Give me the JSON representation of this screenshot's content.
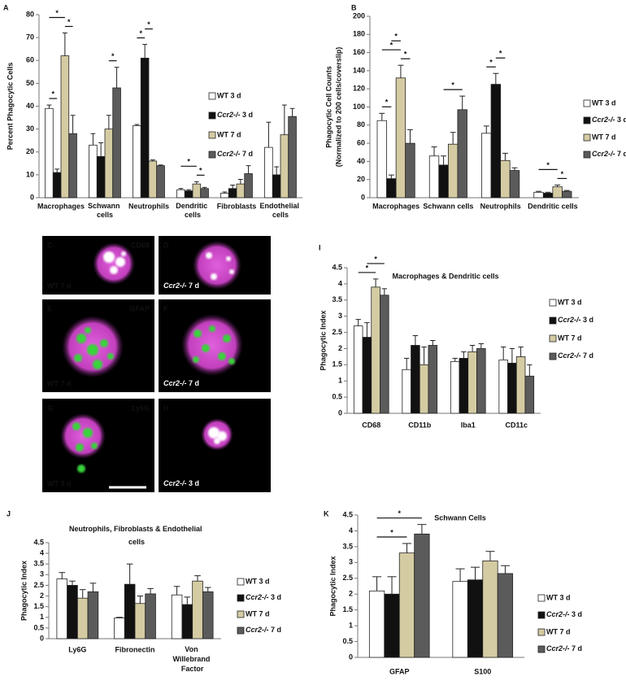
{
  "chart_data": [
    {
      "type": "bar",
      "panel": "A",
      "ylabel": [
        "Percent Phagocytic Cells"
      ],
      "categories": [
        "Macrophages",
        "Schwann cells",
        "Neutrophils",
        "Dendritic cells",
        "Fibroblasts",
        "Endothelial cells"
      ],
      "ylim": [
        0,
        80
      ],
      "yticks": [
        0,
        10,
        20,
        30,
        40,
        50,
        60,
        70,
        80
      ],
      "series": [
        {
          "name": "WT 3 d",
          "color": "#ffffff",
          "values": [
            39,
            23,
            31.5,
            3.5,
            2,
            22
          ],
          "errors": [
            1.5,
            5,
            0.5,
            0.5,
            0.5,
            11
          ]
        },
        {
          "name": "Ccr2-/- 3 d",
          "color": "#111111",
          "values": [
            11,
            18,
            61,
            3,
            4,
            10
          ],
          "errors": [
            1.5,
            6,
            6,
            0.5,
            1.5,
            3.5
          ]
        },
        {
          "name": "WT 7 d",
          "color": "#d5cba3",
          "values": [
            62,
            30,
            16,
            6,
            6,
            27.5
          ],
          "errors": [
            10,
            6,
            0.5,
            1,
            2,
            13
          ]
        },
        {
          "name": "Ccr2-/- 7 d",
          "color": "#5b5b5b",
          "values": [
            28,
            48,
            14,
            4,
            10.5,
            35.5
          ],
          "errors": [
            8,
            9,
            0.3,
            0.5,
            3.5,
            3.5
          ]
        }
      ],
      "significance": [
        {
          "category": 0,
          "series": [
            0,
            1
          ],
          "label": "*"
        },
        {
          "category": 0,
          "series": [
            2,
            3
          ],
          "label": "*"
        },
        {
          "category": 0,
          "series": [
            0,
            2
          ],
          "label": "*"
        },
        {
          "category": 1,
          "series": [
            2,
            3
          ],
          "label": "*"
        },
        {
          "category": 2,
          "series": [
            0,
            1
          ],
          "label": "*"
        },
        {
          "category": 2,
          "series": [
            1,
            2
          ],
          "label": "*"
        },
        {
          "category": 3,
          "series": [
            2,
            3
          ],
          "label": "*"
        },
        {
          "category": 3,
          "series": [
            0,
            2
          ],
          "label": "*"
        }
      ]
    },
    {
      "type": "bar",
      "panel": "B",
      "ylabel": [
        "Phagocytic Cell Counts",
        "(Normalized to 200 cells/coverslip)"
      ],
      "categories": [
        "Macrophages",
        "Schwann cells",
        "Neutrophils",
        "Dendritic cells"
      ],
      "ylim": [
        0,
        200
      ],
      "yticks": [
        0,
        20,
        40,
        60,
        80,
        100,
        120,
        140,
        160,
        180,
        200
      ],
      "series": [
        {
          "name": "WT 3 d",
          "color": "#ffffff",
          "values": [
            85,
            46,
            71,
            6
          ],
          "errors": [
            8,
            10,
            8,
            1
          ]
        },
        {
          "name": "Ccr2-/- 3 d",
          "color": "#111111",
          "values": [
            21,
            36,
            125,
            5
          ],
          "errors": [
            4,
            10,
            12,
            1
          ]
        },
        {
          "name": "WT 7 d",
          "color": "#d5cba3",
          "values": [
            132,
            59,
            41,
            12
          ],
          "errors": [
            14,
            13,
            8,
            2
          ]
        },
        {
          "name": "Ccr2-/- 7 d",
          "color": "#5b5b5b",
          "values": [
            60,
            97,
            30,
            7
          ],
          "errors": [
            15,
            15,
            3,
            1
          ]
        }
      ],
      "significance": [
        {
          "category": 0,
          "series": [
            0,
            1
          ],
          "label": "*"
        },
        {
          "category": 0,
          "series": [
            2,
            3
          ],
          "label": "*"
        },
        {
          "category": 0,
          "series": [
            0,
            2
          ],
          "label": "*"
        },
        {
          "category": 0,
          "series": [
            1,
            2
          ],
          "label": "*"
        },
        {
          "category": 1,
          "series": [
            1,
            3
          ],
          "label": "*"
        },
        {
          "category": 2,
          "series": [
            0,
            1
          ],
          "label": "*"
        },
        {
          "category": 2,
          "series": [
            1,
            2
          ],
          "label": "*"
        },
        {
          "category": 3,
          "series": [
            2,
            3
          ],
          "label": "*"
        },
        {
          "category": 3,
          "series": [
            0,
            2
          ],
          "label": "*"
        }
      ]
    },
    {
      "type": "bar",
      "panel": "I",
      "title": "Macrophages & Dendritic cells",
      "ylabel": [
        "Phagocytic Index"
      ],
      "categories": [
        "CD68",
        "CD11b",
        "Iba1",
        "CD11c"
      ],
      "ylim": [
        0,
        4.5
      ],
      "yticks": [
        0,
        0.5,
        1,
        1.5,
        2,
        2.5,
        3,
        3.5,
        4,
        4.5
      ],
      "series": [
        {
          "name": "WT 3 d",
          "color": "#ffffff",
          "values": [
            2.7,
            1.35,
            1.6,
            1.65
          ],
          "errors": [
            0.2,
            0.35,
            0.1,
            0.4
          ]
        },
        {
          "name": "Ccr2-/- 3 d",
          "color": "#111111",
          "values": [
            2.35,
            2.1,
            1.7,
            1.55
          ],
          "errors": [
            0.45,
            0.3,
            0.2,
            0.45
          ]
        },
        {
          "name": "WT 7 d",
          "color": "#d5cba3",
          "values": [
            3.9,
            1.5,
            1.9,
            1.75
          ],
          "errors": [
            0.25,
            0.55,
            0.2,
            0.3
          ]
        },
        {
          "name": "Ccr2-/- 7 d",
          "color": "#5b5b5b",
          "values": [
            3.65,
            2.1,
            2.0,
            1.15
          ],
          "errors": [
            0.2,
            0.15,
            0.15,
            0.35
          ]
        }
      ],
      "significance": [
        {
          "category": 0,
          "series": [
            0,
            2
          ],
          "label": "*"
        },
        {
          "category": 0,
          "series": [
            1,
            3
          ],
          "label": "*"
        }
      ]
    },
    {
      "type": "bar",
      "panel": "J",
      "title": "Neutrophils, Fibroblasts & Endothelial cells",
      "ylabel": [
        "Phagocytic Index"
      ],
      "categories": [
        "Ly6G",
        "Fibronectin",
        "Von Willebrand Factor"
      ],
      "ylim": [
        0,
        4.5
      ],
      "yticks": [
        0,
        0.5,
        1,
        1.5,
        2,
        2.5,
        3,
        3.5,
        4,
        4.5
      ],
      "series": [
        {
          "name": "WT 3 d",
          "color": "#ffffff",
          "values": [
            2.8,
            0.97,
            2.05
          ],
          "errors": [
            0.3,
            0.03,
            0.4
          ]
        },
        {
          "name": "Ccr2-/- 3 d",
          "color": "#111111",
          "values": [
            2.5,
            2.55,
            1.6
          ],
          "errors": [
            0.2,
            0.95,
            0.35
          ]
        },
        {
          "name": "WT 7 d",
          "color": "#d5cba3",
          "values": [
            1.9,
            1.65,
            2.7
          ],
          "errors": [
            0.4,
            0.35,
            0.25
          ]
        },
        {
          "name": "Ccr2-/- 7 d",
          "color": "#5b5b5b",
          "values": [
            2.2,
            2.1,
            2.2
          ],
          "errors": [
            0.4,
            0.25,
            0.2
          ]
        }
      ],
      "significance": []
    },
    {
      "type": "bar",
      "panel": "K",
      "title": "Schwann Cells",
      "ylabel": [
        "Phagocytic Index"
      ],
      "categories": [
        "GFAP",
        "S100"
      ],
      "ylim": [
        0,
        4.5
      ],
      "yticks": [
        0,
        0.5,
        1,
        1.5,
        2,
        2.5,
        3,
        3.5,
        4,
        4.5
      ],
      "series": [
        {
          "name": "WT 3 d",
          "color": "#ffffff",
          "values": [
            2.1,
            2.4
          ],
          "errors": [
            0.45,
            0.4
          ]
        },
        {
          "name": "Ccr2-/- 3 d",
          "color": "#111111",
          "values": [
            2.0,
            2.45
          ],
          "errors": [
            0.55,
            0.4
          ]
        },
        {
          "name": "WT 7 d",
          "color": "#d5cba3",
          "values": [
            3.3,
            3.05
          ],
          "errors": [
            0.3,
            0.3
          ]
        },
        {
          "name": "Ccr2-/- 7 d",
          "color": "#5b5b5b",
          "values": [
            3.9,
            2.65
          ],
          "errors": [
            0.3,
            0.25
          ]
        }
      ],
      "significance": [
        {
          "category": 0,
          "series": [
            0,
            2
          ],
          "label": "*"
        },
        {
          "category": 0,
          "series": [
            0,
            3
          ],
          "label": "*"
        }
      ]
    }
  ],
  "images": [
    {
      "panel": "C",
      "marker": "CD68",
      "caption": "WT 7 d"
    },
    {
      "panel": "D",
      "caption": "Ccr2-/-  7 d"
    },
    {
      "panel": "E",
      "marker": "GFAP",
      "caption": "WT 7 d"
    },
    {
      "panel": "F",
      "caption": "Ccr2-/-  7 d"
    },
    {
      "panel": "G",
      "marker": "Ly6G",
      "caption": "WT 3 d"
    },
    {
      "panel": "H",
      "caption": "Ccr2-/-  3 d"
    }
  ]
}
